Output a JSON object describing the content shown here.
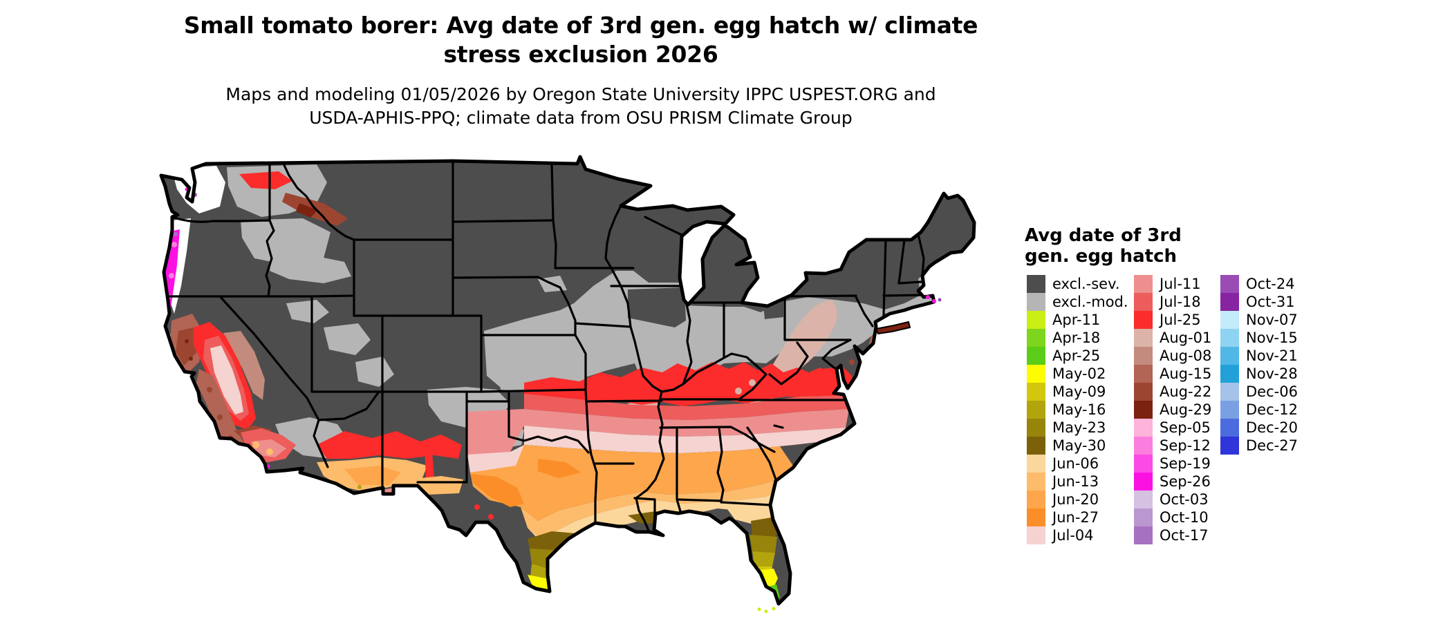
{
  "header": {
    "title_line1": "Small tomato borer: Avg date of 3rd gen. egg hatch w/ climate",
    "title_line2": "stress exclusion 2026",
    "subtitle_line1": "Maps and modeling 01/05/2026 by Oregon State University IPPC USPEST.ORG and",
    "subtitle_line2": "USDA-APHIS-PPQ; climate data from OSU PRISM Climate Group"
  },
  "legend": {
    "title_line1": "Avg date of 3rd",
    "title_line2": "gen. egg hatch",
    "columns": [
      [
        "excl.-sev.",
        "excl.-mod.",
        "Apr-11",
        "Apr-18",
        "Apr-25",
        "May-02",
        "May-09",
        "May-16",
        "May-23",
        "May-30",
        "Jun-06",
        "Jun-13",
        "Jun-20",
        "Jun-27",
        "Jul-04"
      ],
      [
        "Jul-11",
        "Jul-18",
        "Jul-25",
        "Aug-01",
        "Aug-08",
        "Aug-15",
        "Aug-22",
        "Aug-29",
        "Sep-05",
        "Sep-12",
        "Sep-19",
        "Sep-26",
        "Oct-03",
        "Oct-10",
        "Oct-17"
      ],
      [
        "Oct-24",
        "Oct-31",
        "Nov-07",
        "Nov-15",
        "Nov-21",
        "Nov-28",
        "Dec-06",
        "Dec-12",
        "Dec-20",
        "Dec-27"
      ]
    ],
    "colors": {
      "excl.-sev.": "#4d4d4d",
      "excl.-mod.": "#b5b5b5",
      "Apr-11": "#c9ef14",
      "Apr-18": "#7ed51d",
      "Apr-25": "#5bcc17",
      "May-02": "#fdfc03",
      "May-09": "#d2c70e",
      "May-16": "#b2a40c",
      "May-23": "#97850b",
      "May-30": "#7c610b",
      "Jun-06": "#fcd79b",
      "Jun-13": "#fdbc6c",
      "Jun-20": "#fda64b",
      "Jun-27": "#fb8e28",
      "Jul-04": "#f5d3d0",
      "Jul-11": "#ee8f8f",
      "Jul-18": "#ec5d5c",
      "Jul-25": "#fb2c2b",
      "Aug-01": "#dbb3a9",
      "Aug-08": "#c28b7d",
      "Aug-15": "#b26455",
      "Aug-22": "#9c4632",
      "Aug-29": "#7b2211",
      "Sep-05": "#fdb3da",
      "Sep-12": "#fb7ede",
      "Sep-19": "#fc4be4",
      "Sep-26": "#fb12e3",
      "Oct-03": "#d5c1e2",
      "Oct-10": "#bb97d0",
      "Oct-17": "#a771c1",
      "Oct-24": "#9a4cb4",
      "Oct-31": "#8724a2",
      "Nov-07": "#c4ebfa",
      "Nov-15": "#8ed3f2",
      "Nov-21": "#51b7e6",
      "Nov-28": "#21a1d7",
      "Dec-06": "#a5c3e8",
      "Dec-12": "#7aa0e3",
      "Dec-20": "#4b6cdf",
      "Dec-27": "#2f35d9"
    }
  },
  "map": {
    "background": "#ffffff",
    "outline_color": "#000000",
    "no_data_color": "#ffffff"
  }
}
